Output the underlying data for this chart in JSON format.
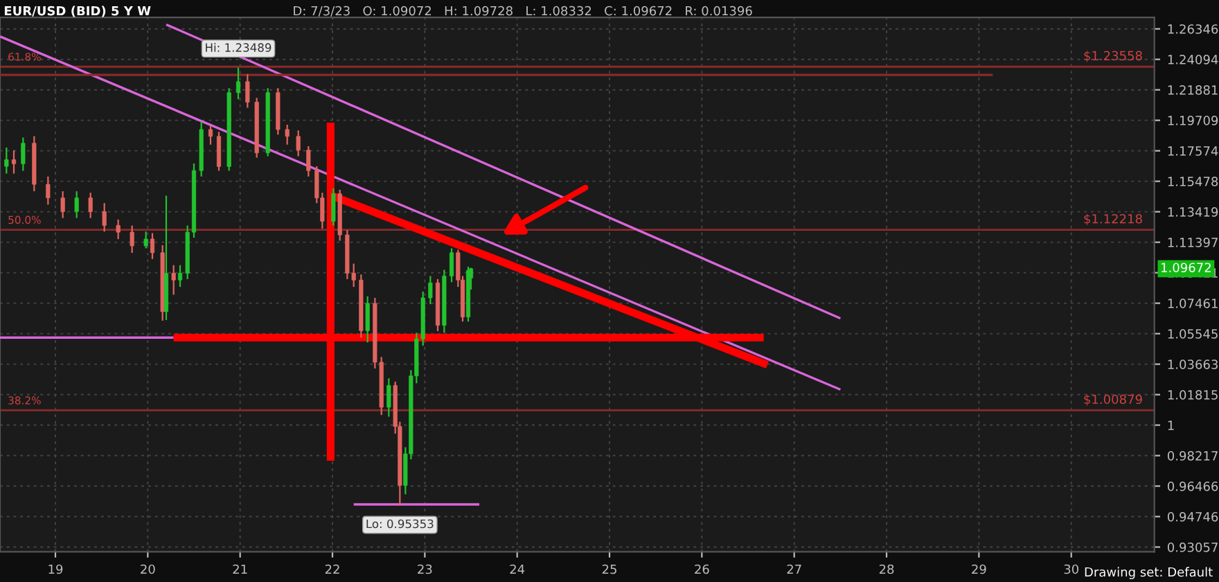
{
  "chart_data": {
    "type": "candlestick",
    "title": "EUR/USD (BID) 5 Y W",
    "subtitle": "D: 7/3/23   O: 1.09072   H: 1.09728   L: 1.08332   C: 1.09672   R: 0.01396",
    "x": [
      2018.47,
      2018.55,
      2018.65,
      2018.77,
      2018.92,
      2019.08,
      2019.23,
      2019.38,
      2019.53,
      2019.68,
      2019.83,
      2019.98,
      2020.05,
      2020.16,
      2020.2,
      2020.28,
      2020.35,
      2020.43,
      2020.5,
      2020.58,
      2020.68,
      2020.77,
      2020.88,
      2020.98,
      2021.08,
      2021.18,
      2021.3,
      2021.41,
      2021.51,
      2021.63,
      2021.74,
      2021.83,
      2021.89,
      2022.01,
      2022.08,
      2022.16,
      2022.23,
      2022.31,
      2022.38,
      2022.46,
      2022.53,
      2022.61,
      2022.68,
      2022.73,
      2022.79,
      2022.85,
      2022.91,
      2022.98,
      2023.06,
      2023.14,
      2023.21,
      2023.29,
      2023.36,
      2023.41,
      2023.47,
      2023.5
    ],
    "ohlc": [
      [
        1.165,
        1.178,
        1.16,
        1.1696
      ],
      [
        1.1696,
        1.176,
        1.16,
        1.1668
      ],
      [
        1.1668,
        1.185,
        1.162,
        1.181
      ],
      [
        1.181,
        1.186,
        1.148,
        1.1527
      ],
      [
        1.1527,
        1.158,
        1.139,
        1.1435
      ],
      [
        1.1435,
        1.148,
        1.13,
        1.1343
      ],
      [
        1.1343,
        1.148,
        1.13,
        1.1435
      ],
      [
        1.1435,
        1.147,
        1.13,
        1.1343
      ],
      [
        1.1343,
        1.14,
        1.121,
        1.1251
      ],
      [
        1.1251,
        1.129,
        1.116,
        1.1206
      ],
      [
        1.1206,
        1.125,
        1.107,
        1.1116
      ],
      [
        1.1116,
        1.121,
        1.11,
        1.1161
      ],
      [
        1.1161,
        1.12,
        1.103,
        1.1071
      ],
      [
        1.1071,
        1.112,
        1.0636,
        1.0693
      ],
      [
        1.0693,
        1.145,
        1.064,
        1.0938
      ],
      [
        1.0938,
        1.099,
        1.08,
        1.0894
      ],
      [
        1.0894,
        1.099,
        1.085,
        1.0938
      ],
      [
        1.0938,
        1.125,
        1.09,
        1.1206
      ],
      [
        1.1206,
        1.167,
        1.117,
        1.1621
      ],
      [
        1.1621,
        1.196,
        1.158,
        1.1906
      ],
      [
        1.1906,
        1.193,
        1.18,
        1.1858
      ],
      [
        1.1858,
        1.189,
        1.162,
        1.1649
      ],
      [
        1.1649,
        1.22,
        1.162,
        1.2168
      ],
      [
        1.2168,
        1.23489,
        1.212,
        1.2247
      ],
      [
        1.2247,
        1.23,
        1.206,
        1.21
      ],
      [
        1.21,
        1.213,
        1.171,
        1.1743
      ],
      [
        1.1743,
        1.22,
        1.172,
        1.2168
      ],
      [
        1.2168,
        1.22,
        1.187,
        1.1906
      ],
      [
        1.1906,
        1.194,
        1.18,
        1.1858
      ],
      [
        1.1858,
        1.19,
        1.172,
        1.1762
      ],
      [
        1.1762,
        1.179,
        1.158,
        1.1621
      ],
      [
        1.1621,
        1.165,
        1.14,
        1.1435
      ],
      [
        1.1435,
        1.147,
        1.123,
        1.1279
      ],
      [
        1.1279,
        1.15,
        1.125,
        1.1463
      ],
      [
        1.1463,
        1.149,
        1.115,
        1.1188
      ],
      [
        1.1188,
        1.122,
        1.09,
        1.0938
      ],
      [
        1.0938,
        1.1,
        1.085,
        1.0894
      ],
      [
        1.0894,
        1.093,
        1.053,
        1.0573
      ],
      [
        1.0573,
        1.079,
        1.05,
        1.0745
      ],
      [
        1.0745,
        1.078,
        1.034,
        1.0378
      ],
      [
        1.0378,
        1.041,
        1.006,
        1.0106
      ],
      [
        1.0106,
        1.028,
        1.005,
        1.0237
      ],
      [
        1.0237,
        1.026,
        0.995,
        0.9992
      ],
      [
        0.9992,
        1.002,
        0.95353,
        0.9651
      ],
      [
        0.9651,
        0.987,
        0.96,
        0.9832
      ],
      [
        0.9832,
        1.033,
        0.98,
        1.0295
      ],
      [
        1.0295,
        1.056,
        1.025,
        1.0522
      ],
      [
        1.0522,
        1.082,
        1.048,
        1.078
      ],
      [
        1.078,
        1.092,
        1.074,
        1.0876
      ],
      [
        1.0876,
        1.09,
        1.057,
        1.0607
      ],
      [
        1.0607,
        1.096,
        1.056,
        1.092
      ],
      [
        1.092,
        1.11,
        1.088,
        1.1071
      ],
      [
        1.1071,
        1.109,
        1.085,
        1.0894
      ],
      [
        1.0894,
        1.092,
        1.063,
        1.0659
      ],
      [
        1.0659,
        1.098,
        1.063,
        1.0956
      ],
      [
        1.09072,
        1.09728,
        1.08332,
        1.09672
      ]
    ],
    "colors": [
      "#22c32e",
      "#e0655f",
      "#22c32e",
      "#e0655f",
      "#e0655f",
      "#e0655f",
      "#22c32e",
      "#e0655f",
      "#e0655f",
      "#e0655f",
      "#e0655f",
      "#22c32e",
      "#e0655f",
      "#e0655f",
      "#22c32e",
      "#e0655f",
      "#22c32e",
      "#22c32e",
      "#22c32e",
      "#22c32e",
      "#e0655f",
      "#e0655f",
      "#22c32e",
      "#22c32e",
      "#e0655f",
      "#e0655f",
      "#22c32e",
      "#e0655f",
      "#e0655f",
      "#e0655f",
      "#e0655f",
      "#e0655f",
      "#e0655f",
      "#22c32e",
      "#e0655f",
      "#e0655f",
      "#e0655f",
      "#e0655f",
      "#22c32e",
      "#e0655f",
      "#e0655f",
      "#22c32e",
      "#e0655f",
      "#e0655f",
      "#22c32e",
      "#22c32e",
      "#22c32e",
      "#22c32e",
      "#22c32e",
      "#e0655f",
      "#22c32e",
      "#22c32e",
      "#e0655f",
      "#e0655f",
      "#22c32e",
      "#22c32e"
    ],
    "series": [
      {
        "type": "line",
        "x": [
          2020.2,
          2027.5
        ],
        "values": [
          1.2667,
          1.065
        ],
        "color": "#d966d9"
      },
      {
        "type": "line",
        "x": [
          2018.4,
          2027.5
        ],
        "values": [
          1.2578,
          1.0212
        ],
        "color": "#d966d9"
      },
      {
        "type": "line",
        "x": [
          2018.4,
          2020.28
        ],
        "values": [
          1.053,
          1.053
        ],
        "color": "#d966d9"
      },
      {
        "type": "line",
        "x": [
          2022.23,
          2023.59
        ],
        "values": [
          0.9543,
          0.9543
        ],
        "color": "#d966d9"
      },
      {
        "type": "line",
        "x": [
          2018.4,
          2029.15
        ],
        "values": [
          1.2296,
          1.2296
        ],
        "color": "#8b2a2a"
      },
      {
        "type": "line",
        "x": [
          2020.28,
          2026.67
        ],
        "values": [
          1.053,
          1.053
        ],
        "color": "#ff0000"
      },
      {
        "type": "line",
        "x": [
          2021.98,
          2021.98
        ],
        "values": [
          1.1954,
          0.9792
        ],
        "color": "#ff0000"
      },
      {
        "type": "line",
        "x": [
          2021.98,
          2026.71
        ],
        "values": [
          1.1453,
          1.0362
        ],
        "color": "#ff0000"
      }
    ],
    "ref_lines": [
      {
        "axis": "y",
        "value": 1.23558,
        "label": "$1.23558",
        "color": "#8b2a2a"
      },
      {
        "axis": "y",
        "value": 1.12218,
        "label": "$1.12218",
        "color": "#8b2a2a"
      },
      {
        "axis": "y",
        "value": 1.00879,
        "label": "$1.00879",
        "color": "#8b2a2a"
      }
    ],
    "annotations": [
      {
        "text": "Hi: 1.23489",
        "x": 2020.98,
        "y": 1.23489
      },
      {
        "text": "Lo: 0.95353",
        "x": 2022.73,
        "y": 0.95353
      },
      "61.8%",
      "50.0%",
      "38.2%",
      "1.09672",
      "Drawing set: Default"
    ],
    "log": "y",
    "xlim": [
      2018.4,
      2030.9
    ],
    "ylim": [
      0.928,
      1.272
    ],
    "xticks": [
      {
        "value": 2019,
        "label": "19"
      },
      {
        "value": 2020,
        "label": "20"
      },
      {
        "value": 2021,
        "label": "21"
      },
      {
        "value": 2022,
        "label": "22"
      },
      {
        "value": 2023,
        "label": "23"
      },
      {
        "value": 2024,
        "label": "24"
      },
      {
        "value": 2025,
        "label": "25"
      },
      {
        "value": 2026,
        "label": "26"
      },
      {
        "value": 2027,
        "label": "27"
      },
      {
        "value": 2028,
        "label": "28"
      },
      {
        "value": 2029,
        "label": "29"
      },
      {
        "value": 2030,
        "label": "30"
      }
    ],
    "yticks": [
      1.26346,
      1.24094,
      1.21881,
      1.19709,
      1.17574,
      1.15478,
      1.13419,
      1.11397,
      1.09411,
      1.07461,
      1.05545,
      1.03663,
      1.01815,
      1,
      0.98217,
      0.96466,
      0.94746,
      0.93057
    ],
    "grid": true,
    "legend": false
  }
}
